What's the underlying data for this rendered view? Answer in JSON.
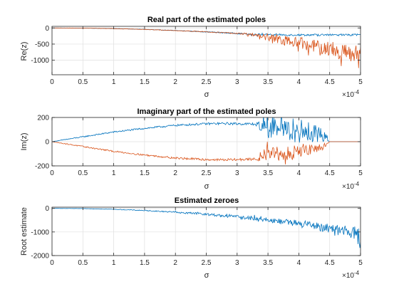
{
  "chart_data": [
    {
      "type": "line",
      "title": "Real part of the estimated poles",
      "xlabel": "σ",
      "ylabel": "Re(z)",
      "xlim": [
        0,
        5
      ],
      "ylim": [
        -1450,
        50
      ],
      "x_exponent_label": "×10",
      "x_exponent_power": "-4",
      "xticks": [
        "0",
        "0.5",
        "1",
        "1.5",
        "2",
        "2.5",
        "3",
        "3.5",
        "4",
        "4.5",
        "5"
      ],
      "xtick_values": [
        0,
        0.5,
        1,
        1.5,
        2,
        2.5,
        3,
        3.5,
        4,
        4.5,
        5
      ],
      "yticks": [
        "0",
        "-500",
        "-1000"
      ],
      "ytick_values": [
        0,
        -500,
        -1000
      ],
      "grid": true,
      "series": [
        {
          "color": "#0072BD",
          "x": [
            0,
            0.5,
            1,
            1.5,
            2,
            2.5,
            3,
            3.3,
            3.5,
            3.8,
            4,
            4.2,
            4.5,
            4.7,
            5
          ],
          "y": [
            0,
            -5,
            -20,
            -45,
            -80,
            -120,
            -170,
            -200,
            -210,
            -215,
            -215,
            -215,
            -215,
            -215,
            -215
          ],
          "noise": [
            0,
            3,
            5,
            8,
            10,
            14,
            18,
            25,
            30,
            30,
            30,
            30,
            30,
            30,
            30
          ]
        },
        {
          "color": "#D95319",
          "x": [
            0,
            0.5,
            1,
            1.5,
            2,
            2.5,
            3,
            3.3,
            3.5,
            3.8,
            4,
            4.2,
            4.5,
            4.7,
            5
          ],
          "y": [
            0,
            -5,
            -20,
            -45,
            -80,
            -120,
            -170,
            -210,
            -300,
            -400,
            -450,
            -550,
            -650,
            -750,
            -850
          ],
          "noise": [
            0,
            3,
            5,
            8,
            10,
            14,
            18,
            60,
            120,
            150,
            170,
            200,
            230,
            260,
            300
          ]
        }
      ]
    },
    {
      "type": "line",
      "title": "Imaginary part of the estimated poles",
      "xlabel": "σ",
      "ylabel": "Im(z)",
      "xlim": [
        0,
        5
      ],
      "ylim": [
        -200,
        200
      ],
      "x_exponent_label": "×10",
      "x_exponent_power": "-4",
      "xticks": [
        "0",
        "0.5",
        "1",
        "1.5",
        "2",
        "2.5",
        "3",
        "3.5",
        "4",
        "4.5",
        "5"
      ],
      "xtick_values": [
        0,
        0.5,
        1,
        1.5,
        2,
        2.5,
        3,
        3.5,
        4,
        4.5,
        5
      ],
      "yticks": [
        "200",
        "0",
        "-200"
      ],
      "ytick_values": [
        200,
        0,
        -200
      ],
      "grid": true,
      "series": [
        {
          "color": "#0072BD",
          "x": [
            0,
            0.25,
            0.5,
            1,
            1.5,
            2,
            2.5,
            2.8,
            3,
            3.3,
            3.5,
            4,
            4.4,
            4.5,
            5
          ],
          "y": [
            0,
            20,
            40,
            80,
            110,
            135,
            148,
            150,
            148,
            145,
            120,
            90,
            60,
            0,
            0
          ],
          "noise": [
            0,
            4,
            5,
            6,
            7,
            8,
            9,
            10,
            10,
            12,
            90,
            100,
            60,
            0,
            0
          ]
        },
        {
          "color": "#D95319",
          "x": [
            0,
            0.25,
            0.5,
            1,
            1.5,
            2,
            2.5,
            2.8,
            3,
            3.3,
            3.5,
            4,
            4.4,
            4.5,
            5
          ],
          "y": [
            0,
            -20,
            -40,
            -80,
            -110,
            -135,
            -148,
            -150,
            -148,
            -145,
            -110,
            -80,
            -40,
            0,
            0
          ],
          "noise": [
            0,
            4,
            5,
            6,
            7,
            8,
            9,
            10,
            10,
            12,
            60,
            60,
            30,
            0,
            0
          ]
        }
      ]
    },
    {
      "type": "line",
      "title": "Estimated zeroes",
      "xlabel": "σ",
      "ylabel": "Root estimate",
      "xlim": [
        0,
        5
      ],
      "ylim": [
        -2000,
        50
      ],
      "x_exponent_label": "×10",
      "x_exponent_power": "-4",
      "xticks": [
        "0",
        "0.5",
        "1",
        "1.5",
        "2",
        "2.5",
        "3",
        "3.5",
        "4",
        "4.5",
        "5"
      ],
      "xtick_values": [
        0,
        0.5,
        1,
        1.5,
        2,
        2.5,
        3,
        3.5,
        4,
        4.5,
        5
      ],
      "yticks": [
        "0",
        "-1000",
        "-2000"
      ],
      "ytick_values": [
        0,
        -1000,
        -2000
      ],
      "grid": true,
      "series": [
        {
          "color": "#0072BD",
          "x": [
            0,
            0.5,
            1,
            1.5,
            2,
            2.5,
            3,
            3.5,
            4,
            4.5,
            4.8,
            5
          ],
          "y": [
            0,
            -10,
            -40,
            -90,
            -160,
            -250,
            -360,
            -490,
            -650,
            -850,
            -1000,
            -1150
          ],
          "noise": [
            0,
            5,
            10,
            20,
            30,
            50,
            70,
            110,
            150,
            200,
            280,
            350
          ]
        }
      ]
    }
  ]
}
